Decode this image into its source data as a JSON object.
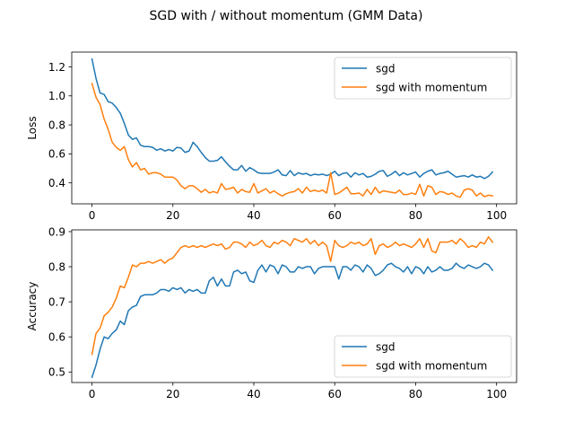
{
  "figure": {
    "title": "SGD with / without momentum (GMM Data)"
  },
  "colors": {
    "sgd": "#1f77b4",
    "sgd_momentum": "#ff7f0e"
  },
  "chart_data": [
    {
      "type": "line",
      "id": "loss",
      "title": "",
      "xlabel": "",
      "ylabel": "Loss",
      "xlim": [
        -5,
        104.95
      ],
      "ylim": [
        0.2555,
        1.302
      ],
      "xticks": [
        0,
        20,
        40,
        60,
        80,
        100
      ],
      "yticks": [
        0.4,
        0.6,
        0.8,
        1.0,
        1.2
      ],
      "ytick_labels": [
        "0.4",
        "0.6",
        "0.8",
        "1.0",
        "1.2"
      ],
      "legend": {
        "placement": "upper right",
        "entries": [
          "sgd",
          "sgd with momentum"
        ]
      },
      "grid": false,
      "series": [
        {
          "name": "sgd",
          "color_key": "sgd",
          "values": [
            1.255,
            1.12,
            1.02,
            1.01,
            0.96,
            0.95,
            0.92,
            0.88,
            0.81,
            0.73,
            0.7,
            0.71,
            0.66,
            0.65,
            0.65,
            0.645,
            0.625,
            0.635,
            0.62,
            0.63,
            0.62,
            0.645,
            0.64,
            0.61,
            0.62,
            0.68,
            0.65,
            0.61,
            0.575,
            0.55,
            0.55,
            0.555,
            0.58,
            0.545,
            0.515,
            0.49,
            0.49,
            0.52,
            0.48,
            0.505,
            0.49,
            0.47,
            0.465,
            0.465,
            0.465,
            0.475,
            0.49,
            0.455,
            0.45,
            0.485,
            0.45,
            0.47,
            0.46,
            0.465,
            0.45,
            0.46,
            0.455,
            0.46,
            0.45,
            0.46,
            0.48,
            0.45,
            0.465,
            0.47,
            0.44,
            0.47,
            0.455,
            0.465,
            0.44,
            0.445,
            0.46,
            0.48,
            0.485,
            0.445,
            0.46,
            0.48,
            0.45,
            0.47,
            0.455,
            0.465,
            0.475,
            0.44,
            0.465,
            0.48,
            0.49,
            0.455,
            0.465,
            0.47,
            0.48,
            0.46,
            0.44,
            0.445,
            0.45,
            0.44,
            0.455,
            0.44,
            0.445,
            0.43,
            0.445,
            0.475
          ]
        },
        {
          "name": "sgd with momentum",
          "color_key": "sgd_momentum",
          "values": [
            1.085,
            0.99,
            0.94,
            0.84,
            0.77,
            0.68,
            0.645,
            0.625,
            0.65,
            0.56,
            0.51,
            0.54,
            0.49,
            0.5,
            0.46,
            0.47,
            0.47,
            0.46,
            0.44,
            0.44,
            0.44,
            0.42,
            0.38,
            0.36,
            0.38,
            0.38,
            0.36,
            0.335,
            0.355,
            0.33,
            0.34,
            0.33,
            0.395,
            0.355,
            0.36,
            0.37,
            0.33,
            0.355,
            0.34,
            0.335,
            0.395,
            0.33,
            0.345,
            0.36,
            0.33,
            0.345,
            0.325,
            0.31,
            0.325,
            0.335,
            0.34,
            0.36,
            0.33,
            0.37,
            0.34,
            0.35,
            0.34,
            0.35,
            0.33,
            0.47,
            0.32,
            0.33,
            0.35,
            0.37,
            0.325,
            0.325,
            0.33,
            0.31,
            0.355,
            0.32,
            0.37,
            0.33,
            0.345,
            0.34,
            0.335,
            0.33,
            0.35,
            0.32,
            0.32,
            0.33,
            0.32,
            0.39,
            0.31,
            0.38,
            0.37,
            0.32,
            0.34,
            0.335,
            0.32,
            0.33,
            0.31,
            0.3,
            0.35,
            0.36,
            0.35,
            0.31,
            0.33,
            0.305,
            0.315,
            0.31
          ]
        }
      ]
    },
    {
      "type": "line",
      "id": "accuracy",
      "title": "",
      "xlabel": "",
      "ylabel": "Accuracy",
      "xlim": [
        -5,
        104.95
      ],
      "ylim": [
        0.47,
        0.905
      ],
      "xticks": [
        0,
        20,
        40,
        60,
        80,
        100
      ],
      "yticks": [
        0.5,
        0.6,
        0.7,
        0.8,
        0.9
      ],
      "ytick_labels": [
        "0.5",
        "0.6",
        "0.7",
        "0.8",
        "0.9"
      ],
      "legend": {
        "placement": "lower right",
        "entries": [
          "sgd",
          "sgd with momentum"
        ]
      },
      "grid": false,
      "series": [
        {
          "name": "sgd",
          "color_key": "sgd",
          "values": [
            0.485,
            0.52,
            0.565,
            0.6,
            0.595,
            0.61,
            0.62,
            0.645,
            0.635,
            0.675,
            0.685,
            0.69,
            0.715,
            0.72,
            0.72,
            0.72,
            0.725,
            0.735,
            0.735,
            0.73,
            0.74,
            0.735,
            0.74,
            0.725,
            0.735,
            0.73,
            0.735,
            0.725,
            0.725,
            0.76,
            0.77,
            0.745,
            0.765,
            0.745,
            0.745,
            0.785,
            0.79,
            0.78,
            0.785,
            0.76,
            0.755,
            0.79,
            0.805,
            0.785,
            0.805,
            0.8,
            0.78,
            0.805,
            0.8,
            0.785,
            0.785,
            0.8,
            0.795,
            0.8,
            0.8,
            0.78,
            0.795,
            0.8,
            0.8,
            0.8,
            0.8,
            0.765,
            0.8,
            0.8,
            0.79,
            0.805,
            0.8,
            0.785,
            0.805,
            0.795,
            0.775,
            0.78,
            0.79,
            0.805,
            0.81,
            0.8,
            0.795,
            0.785,
            0.8,
            0.78,
            0.8,
            0.795,
            0.78,
            0.8,
            0.785,
            0.79,
            0.8,
            0.79,
            0.79,
            0.795,
            0.81,
            0.8,
            0.795,
            0.805,
            0.8,
            0.795,
            0.8,
            0.81,
            0.805,
            0.79
          ]
        },
        {
          "name": "sgd with momentum",
          "color_key": "sgd_momentum",
          "values": [
            0.55,
            0.61,
            0.625,
            0.66,
            0.67,
            0.685,
            0.71,
            0.745,
            0.74,
            0.77,
            0.805,
            0.8,
            0.81,
            0.81,
            0.815,
            0.81,
            0.815,
            0.82,
            0.81,
            0.82,
            0.825,
            0.84,
            0.855,
            0.86,
            0.855,
            0.86,
            0.855,
            0.86,
            0.855,
            0.86,
            0.865,
            0.86,
            0.865,
            0.85,
            0.855,
            0.87,
            0.87,
            0.865,
            0.855,
            0.87,
            0.86,
            0.865,
            0.875,
            0.86,
            0.855,
            0.87,
            0.865,
            0.875,
            0.87,
            0.86,
            0.88,
            0.875,
            0.87,
            0.88,
            0.865,
            0.875,
            0.86,
            0.87,
            0.86,
            0.815,
            0.875,
            0.86,
            0.855,
            0.86,
            0.87,
            0.865,
            0.87,
            0.86,
            0.865,
            0.88,
            0.835,
            0.86,
            0.865,
            0.855,
            0.86,
            0.87,
            0.86,
            0.865,
            0.86,
            0.855,
            0.865,
            0.88,
            0.855,
            0.88,
            0.845,
            0.84,
            0.87,
            0.87,
            0.87,
            0.875,
            0.865,
            0.88,
            0.87,
            0.855,
            0.86,
            0.855,
            0.87,
            0.865,
            0.885,
            0.87
          ]
        }
      ]
    }
  ]
}
